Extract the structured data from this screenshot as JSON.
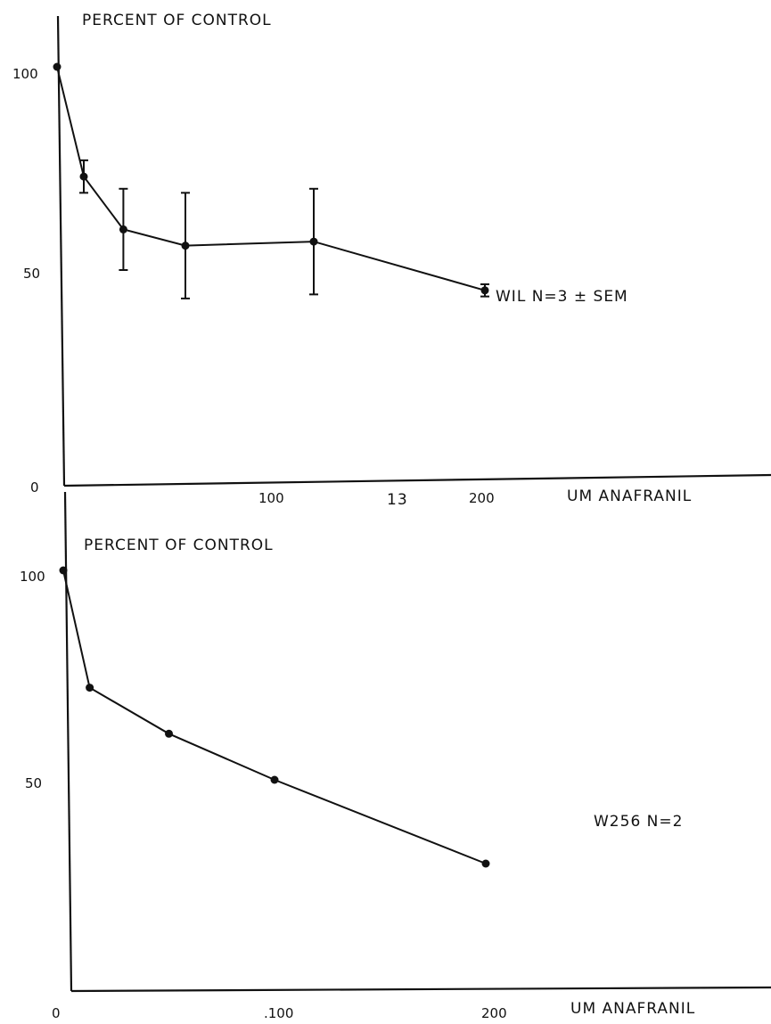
{
  "page_marks": {
    "panel_label": "13"
  },
  "chart_data": [
    {
      "type": "line",
      "title": "",
      "ylabel": "PERCENT OF CONTROL",
      "xlabel": "UM ANAFRANIL",
      "xlim": [
        0,
        260
      ],
      "ylim": [
        0,
        115
      ],
      "x_ticks": [
        "100",
        "200"
      ],
      "y_ticks": [
        "0",
        "50",
        "100"
      ],
      "grid": false,
      "series": [
        {
          "name": "WIL N=3 ± SEM",
          "x": [
            0,
            12.5,
            31,
            60,
            120,
            200
          ],
          "y": [
            100,
            73,
            60,
            56,
            57,
            45
          ],
          "error": [
            0,
            4,
            10,
            13,
            13,
            1.5
          ]
        }
      ]
    },
    {
      "type": "line",
      "title": "",
      "ylabel": "PERCENT OF CONTROL",
      "xlabel": "UM ANAFRANIL",
      "xlim": [
        0,
        260
      ],
      "ylim": [
        0,
        115
      ],
      "x_ticks": [
        "0",
        ".100",
        "200"
      ],
      "y_ticks": [
        "50",
        "100"
      ],
      "grid": false,
      "series": [
        {
          "name": "W256   N=2",
          "x": [
            0,
            12.5,
            50,
            100,
            200
          ],
          "y": [
            100,
            72,
            61,
            50,
            30
          ]
        }
      ]
    }
  ]
}
